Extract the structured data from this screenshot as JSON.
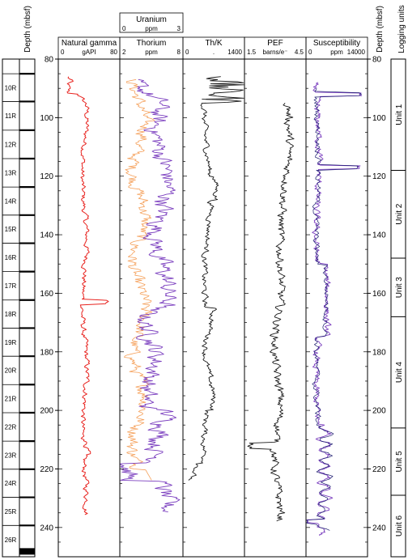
{
  "chart_data": {
    "type": "line",
    "depth_axis": {
      "label": "Depth (mbsf)",
      "range": [
        80,
        250
      ],
      "ticks": [
        80,
        100,
        120,
        140,
        160,
        180,
        200,
        220,
        240
      ],
      "inverted": true
    },
    "core_column": {
      "cores": [
        {
          "label": "10R",
          "top": 85.0,
          "bottom": 94.5
        },
        {
          "label": "11R",
          "top": 94.5,
          "bottom": 104.3
        },
        {
          "label": "12R",
          "top": 104.3,
          "bottom": 114.0
        },
        {
          "label": "13R",
          "top": 114.0,
          "bottom": 123.7
        },
        {
          "label": "14R",
          "top": 123.7,
          "bottom": 133.3
        },
        {
          "label": "15R",
          "top": 133.3,
          "bottom": 142.9
        },
        {
          "label": "16R",
          "top": 142.9,
          "bottom": 152.6
        },
        {
          "label": "17R",
          "top": 152.6,
          "bottom": 162.3
        },
        {
          "label": "18R",
          "top": 162.3,
          "bottom": 171.9
        },
        {
          "label": "19R",
          "top": 171.9,
          "bottom": 181.5
        },
        {
          "label": "20R",
          "top": 181.5,
          "bottom": 191.2
        },
        {
          "label": "21R",
          "top": 191.2,
          "bottom": 200.8
        },
        {
          "label": "22R",
          "top": 200.8,
          "bottom": 210.5
        },
        {
          "label": "23R",
          "top": 210.5,
          "bottom": 220.1
        },
        {
          "label": "24R",
          "top": 220.1,
          "bottom": 229.7
        },
        {
          "label": "25R",
          "top": 229.7,
          "bottom": 239.3
        },
        {
          "label": "26R",
          "top": 239.3,
          "bottom": 249.0
        }
      ]
    },
    "tracks": [
      {
        "name": "Natural gamma",
        "unit": "gAPI",
        "range": [
          0,
          80
        ],
        "range_labels": [
          "0",
          "80"
        ],
        "series": [
          {
            "color": "#e8231f",
            "style": "natural_gamma"
          }
        ]
      },
      {
        "name": "Thorium",
        "unit": "ppm",
        "range": [
          2,
          8
        ],
        "range_labels": [
          "2",
          "8"
        ],
        "extra_scale": {
          "name": "Uranium",
          "unit": "ppm",
          "range": [
            0,
            3
          ],
          "range_labels": [
            "0",
            "3"
          ]
        },
        "series": [
          {
            "color": "#f5a05a",
            "style": "uranium"
          },
          {
            "color": "#7b3fbf",
            "style": "thorium"
          }
        ]
      },
      {
        "name": "Th/K",
        "unit": ".",
        "range": [
          0,
          1400
        ],
        "range_labels": [
          "0",
          "1400"
        ],
        "series": [
          {
            "color": "#1a1a1a",
            "style": "thk"
          }
        ]
      },
      {
        "name": "PEF",
        "unit": "barns/e⁻",
        "range": [
          1.5,
          4.5
        ],
        "range_labels": [
          "1.5",
          "4.5"
        ],
        "series": [
          {
            "color": "#1a1a1a",
            "style": "pef"
          }
        ]
      },
      {
        "name": "Susceptibility",
        "unit": "ppm",
        "range": [
          0,
          14000
        ],
        "range_labels": [
          "0",
          "14000"
        ],
        "series": [
          {
            "color": "#7b3fbf",
            "style": "susc_a"
          },
          {
            "color": "#1a1a6e",
            "style": "susc_b"
          }
        ]
      }
    ],
    "logging_units": {
      "label": "Logging units",
      "units": [
        {
          "label": "Unit 1",
          "top": 80,
          "bottom": 118
        },
        {
          "label": "Unit 2",
          "top": 118,
          "bottom": 148
        },
        {
          "label": "Unit 3",
          "top": 148,
          "bottom": 168
        },
        {
          "label": "Unit 4",
          "top": 168,
          "bottom": 206
        },
        {
          "label": "Unit 5",
          "top": 206,
          "bottom": 229
        },
        {
          "label": "Unit 6",
          "top": 229,
          "bottom": 250
        }
      ]
    }
  }
}
